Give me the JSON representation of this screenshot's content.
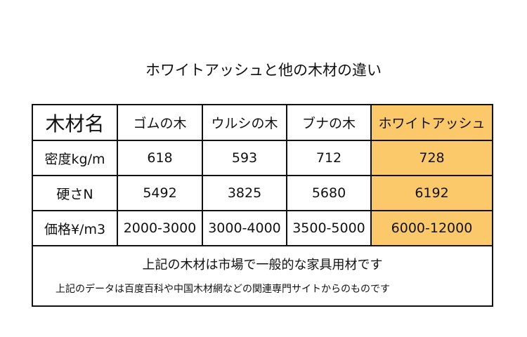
{
  "title": "ホワイトアッシュと他の木材の違い",
  "table": {
    "header": [
      "木材名",
      "ゴムの木",
      "ウルシの木",
      "ブナの木",
      "ホワイトアッシュ"
    ],
    "rows": [
      {
        "label": "密度kg/m",
        "values": [
          "618",
          "593",
          "712",
          "728"
        ]
      },
      {
        "label": "硬さN",
        "values": [
          "5492",
          "3825",
          "5680",
          "6192"
        ]
      },
      {
        "label": "価格¥/m3",
        "values": [
          "2000-3000",
          "3000-4000",
          "3500-5000",
          "6000-12000"
        ]
      }
    ],
    "highlight_color": "#fcc96a"
  },
  "notes": {
    "main": "上記の木材は市場で一般的な家具用材です",
    "source": "上記のデータは百度百科や中国木材網などの関連専門サイトからのものです"
  }
}
